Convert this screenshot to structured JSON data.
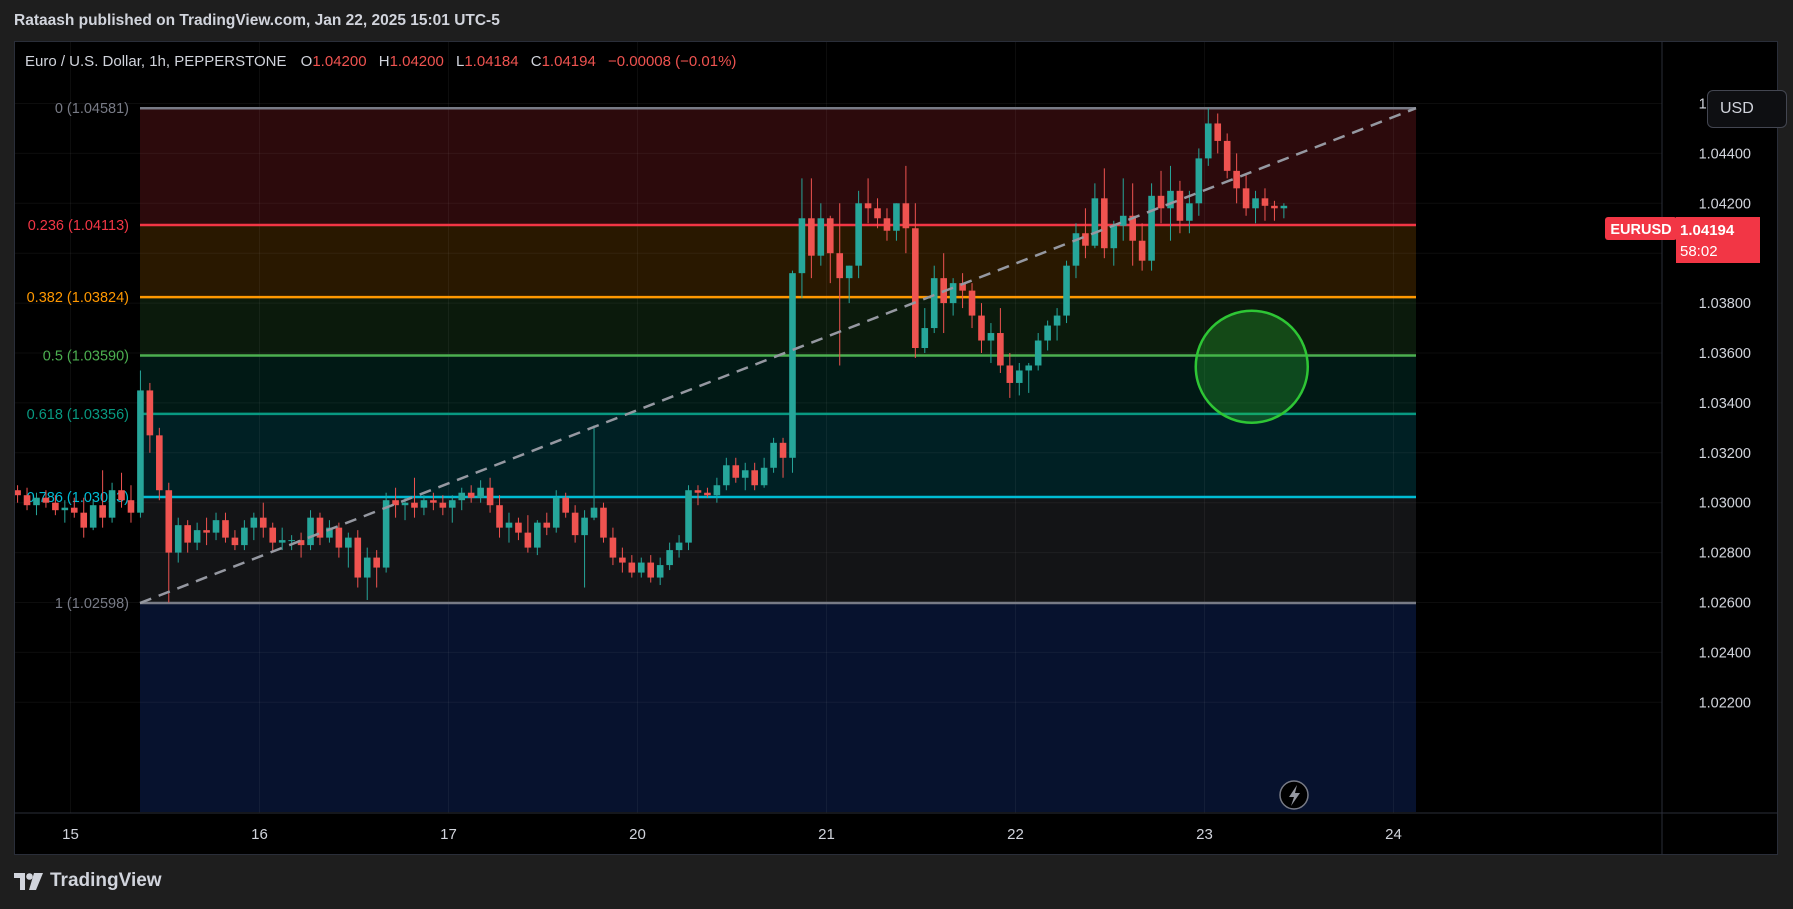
{
  "header": {
    "published_text": "Rataash published on TradingView.com, Jan 22, 2025 15:01 UTC-5"
  },
  "footer": {
    "brand": "TradingView"
  },
  "currency_button": "USD",
  "legend": {
    "symbol": "Euro / U.S. Dollar, 1h, PEPPERSTONE",
    "o_label": "O",
    "o": "1.04200",
    "h_label": "H",
    "h": "1.04200",
    "l_label": "L",
    "l": "1.04184",
    "c_label": "C",
    "c": "1.04194",
    "change": "−0.00008 (−0.01%)"
  },
  "price_tag": {
    "symbol": "EURUSD",
    "price": "1.04194",
    "countdown": "58:02"
  },
  "colors": {
    "up": "#26a69a",
    "down": "#ef5350",
    "background": "#000000",
    "fib_0": "#787b86",
    "fib_0236": "#f23645",
    "fib_0382": "#ff9800",
    "fib_05": "#4caf50",
    "fib_0618": "#089981",
    "fib_0786": "#00bcd4",
    "fib_1": "#787b86",
    "circle": "#2ec635"
  },
  "chart_data": {
    "type": "candlestick",
    "symbol": "EURUSD",
    "interval": "1h",
    "x_ticks": [
      "15",
      "16",
      "17",
      "20",
      "21",
      "22",
      "23",
      "24"
    ],
    "y_ticks": [
      "1.04600",
      "1.04400",
      "1.04200",
      "1.04000",
      "1.03800",
      "1.03600",
      "1.03400",
      "1.03200",
      "1.03000",
      "1.02800",
      "1.02600",
      "1.02400",
      "1.02200"
    ],
    "ylim": [
      1.0216,
      1.0474
    ],
    "fib_retracement": [
      {
        "ratio": "0",
        "price": 1.04581,
        "label": "0 (1.04581)"
      },
      {
        "ratio": "0.236",
        "price": 1.04113,
        "label": "0.236 (1.04113)"
      },
      {
        "ratio": "0.382",
        "price": 1.03824,
        "label": "0.382 (1.03824)"
      },
      {
        "ratio": "0.5",
        "price": 1.0359,
        "label": "0.5 (1.03590)"
      },
      {
        "ratio": "0.618",
        "price": 1.03356,
        "label": "0.618 (1.03356)"
      },
      {
        "ratio": "0.786",
        "price": 1.03023,
        "label": "0.786 (1.03023)"
      },
      {
        "ratio": "1",
        "price": 1.02598,
        "label": "1 (1.02598)"
      }
    ],
    "trend_line": {
      "start": [
        15.37,
        1.02598
      ],
      "end": [
        24.1,
        1.04581
      ]
    },
    "highlight_circle": {
      "x": 21.25,
      "y": 1.03545
    },
    "series": [
      {
        "candles": [
          [
            14.72,
            1.0305,
            1.0307,
            1.03,
            1.0303
          ],
          [
            14.77,
            1.0303,
            1.0306,
            1.0297,
            1.0299
          ],
          [
            14.82,
            1.0299,
            1.0304,
            1.0295,
            1.0302
          ],
          [
            14.87,
            1.0302,
            1.0305,
            1.0298,
            1.03
          ],
          [
            14.92,
            1.03,
            1.0303,
            1.0295,
            1.0297
          ],
          [
            14.97,
            1.0297,
            1.0301,
            1.0292,
            1.0298
          ],
          [
            15.02,
            1.0298,
            1.0302,
            1.0294,
            1.0296
          ],
          [
            15.07,
            1.0296,
            1.0302,
            1.0286,
            1.029
          ],
          [
            15.12,
            1.029,
            1.0301,
            1.0289,
            1.0299
          ],
          [
            15.17,
            1.0299,
            1.0313,
            1.029,
            1.0294
          ],
          [
            15.22,
            1.0294,
            1.0308,
            1.0292,
            1.0305
          ],
          [
            15.27,
            1.0305,
            1.0312,
            1.0298,
            1.0301
          ],
          [
            15.32,
            1.0301,
            1.0307,
            1.0292,
            1.0296
          ],
          [
            15.37,
            1.0296,
            1.0353,
            1.0294,
            1.0345
          ],
          [
            15.42,
            1.0345,
            1.0348,
            1.032,
            1.0327
          ],
          [
            15.47,
            1.0327,
            1.033,
            1.0301,
            1.0305
          ],
          [
            15.52,
            1.0305,
            1.0308,
            1.026,
            1.028
          ],
          [
            15.57,
            1.028,
            1.0294,
            1.0276,
            1.0291
          ],
          [
            15.62,
            1.0291,
            1.0293,
            1.028,
            1.0284
          ],
          [
            15.67,
            1.0284,
            1.0292,
            1.0281,
            1.0289
          ],
          [
            15.72,
            1.0289,
            1.0294,
            1.0283,
            1.0288
          ],
          [
            15.77,
            1.0288,
            1.0296,
            1.0285,
            1.0293
          ],
          [
            15.82,
            1.0293,
            1.0296,
            1.0284,
            1.0286
          ],
          [
            15.87,
            1.0286,
            1.0289,
            1.0281,
            1.0283
          ],
          [
            15.92,
            1.0283,
            1.0293,
            1.0281,
            1.029
          ],
          [
            15.97,
            1.029,
            1.0296,
            1.0285,
            1.0294
          ],
          [
            16.02,
            1.0294,
            1.03,
            1.0286,
            1.029
          ],
          [
            16.07,
            1.029,
            1.0292,
            1.028,
            1.0284
          ],
          [
            16.12,
            1.0284,
            1.029,
            1.0281,
            1.0285
          ],
          [
            16.17,
            1.0285,
            1.0287,
            1.0281,
            1.0285
          ],
          [
            16.22,
            1.0285,
            1.0288,
            1.0278,
            1.0283
          ],
          [
            16.27,
            1.0283,
            1.0297,
            1.0281,
            1.0294
          ],
          [
            16.32,
            1.0294,
            1.0296,
            1.0283,
            1.0286
          ],
          [
            16.37,
            1.0286,
            1.0293,
            1.0284,
            1.029
          ],
          [
            16.42,
            1.029,
            1.0292,
            1.0278,
            1.0282
          ],
          [
            16.47,
            1.0282,
            1.0288,
            1.0274,
            1.0286
          ],
          [
            16.52,
            1.0286,
            1.0289,
            1.0266,
            1.027
          ],
          [
            16.57,
            1.027,
            1.0282,
            1.0261,
            1.0278
          ],
          [
            16.62,
            1.0278,
            1.0281,
            1.0266,
            1.0274
          ],
          [
            16.67,
            1.0274,
            1.0304,
            1.0272,
            1.0301
          ],
          [
            16.72,
            1.0301,
            1.0306,
            1.0294,
            1.0299
          ],
          [
            16.77,
            1.0299,
            1.0302,
            1.0293,
            1.03
          ],
          [
            16.82,
            1.03,
            1.031,
            1.0294,
            1.0298
          ],
          [
            16.87,
            1.0298,
            1.0303,
            1.0295,
            1.0301
          ],
          [
            16.92,
            1.0301,
            1.0304,
            1.0297,
            1.03
          ],
          [
            16.97,
            1.03,
            1.0303,
            1.0295,
            1.0298
          ],
          [
            17.02,
            1.0298,
            1.0303,
            1.0292,
            1.0301
          ],
          [
            17.07,
            1.0301,
            1.0306,
            1.0297,
            1.0304
          ],
          [
            17.12,
            1.0304,
            1.0307,
            1.03,
            1.0302
          ],
          [
            17.17,
            1.0302,
            1.0309,
            1.03,
            1.0306
          ],
          [
            17.22,
            1.0306,
            1.031,
            1.0296,
            1.0299
          ],
          [
            17.27,
            1.0299,
            1.0303,
            1.0286,
            1.029
          ],
          [
            17.32,
            1.029,
            1.0296,
            1.0284,
            1.0292
          ],
          [
            17.37,
            1.0292,
            1.0294,
            1.0285,
            1.0288
          ],
          [
            17.42,
            1.0288,
            1.0295,
            1.028,
            1.0282
          ],
          [
            17.47,
            1.0282,
            1.0293,
            1.0279,
            1.0292
          ],
          [
            17.52,
            1.0292,
            1.0296,
            1.0287,
            1.029
          ],
          [
            17.57,
            1.029,
            1.0305,
            1.0288,
            1.0302
          ],
          [
            17.62,
            1.0302,
            1.0304,
            1.0294,
            1.0296
          ],
          [
            17.67,
            1.0296,
            1.0299,
            1.0284,
            1.0287
          ],
          [
            17.72,
            1.0287,
            1.0297,
            1.0266,
            1.0294
          ],
          [
            17.77,
            1.0294,
            1.0331,
            1.0293,
            1.0298
          ],
          [
            17.82,
            1.0298,
            1.03,
            1.0284,
            1.0286
          ],
          [
            17.87,
            1.0286,
            1.029,
            1.0275,
            1.0278
          ],
          [
            17.92,
            1.0278,
            1.0282,
            1.0272,
            1.0276
          ],
          [
            17.97,
            1.0276,
            1.0279,
            1.027,
            1.0272
          ],
          [
            18.02,
            1.0272,
            1.0278,
            1.027,
            1.0276
          ],
          [
            18.07,
            1.0276,
            1.0279,
            1.0268,
            1.027
          ],
          [
            18.12,
            1.027,
            1.0278,
            1.0267,
            1.0275
          ],
          [
            18.17,
            1.0275,
            1.0284,
            1.0273,
            1.0281
          ],
          [
            18.22,
            1.0281,
            1.0287,
            1.0278,
            1.0284
          ],
          [
            18.27,
            1.0284,
            1.0307,
            1.0281,
            1.0305
          ],
          [
            18.32,
            1.0305,
            1.0307,
            1.0299,
            1.0304
          ],
          [
            18.37,
            1.0304,
            1.0306,
            1.0302,
            1.0303
          ],
          [
            18.42,
            1.0303,
            1.031,
            1.03,
            1.0307
          ],
          [
            18.47,
            1.0307,
            1.0318,
            1.0305,
            1.0315
          ],
          [
            18.52,
            1.0315,
            1.0318,
            1.0308,
            1.031
          ],
          [
            18.57,
            1.031,
            1.0316,
            1.0305,
            1.0313
          ],
          [
            18.62,
            1.0313,
            1.0316,
            1.0305,
            1.0307
          ],
          [
            18.67,
            1.0307,
            1.0318,
            1.0306,
            1.0314
          ],
          [
            18.72,
            1.0314,
            1.0326,
            1.0312,
            1.0324
          ],
          [
            18.77,
            1.0324,
            1.0326,
            1.031,
            1.0318
          ],
          [
            18.82,
            1.0318,
            1.0393,
            1.0312,
            1.0392
          ],
          [
            18.87,
            1.0392,
            1.043,
            1.0382,
            1.0414
          ],
          [
            18.92,
            1.0414,
            1.043,
            1.039,
            1.0399
          ],
          [
            18.97,
            1.0399,
            1.042,
            1.0395,
            1.0414
          ],
          [
            19.02,
            1.0414,
            1.0415,
            1.0388,
            1.04
          ],
          [
            19.07,
            1.04,
            1.042,
            1.0355,
            1.039
          ],
          [
            19.12,
            1.039,
            1.0395,
            1.038,
            1.0395
          ],
          [
            19.17,
            1.0395,
            1.0425,
            1.039,
            1.042
          ],
          [
            19.22,
            1.042,
            1.043,
            1.0412,
            1.0418
          ],
          [
            19.27,
            1.0418,
            1.0422,
            1.041,
            1.0414
          ],
          [
            19.32,
            1.0414,
            1.0418,
            1.0405,
            1.0409
          ],
          [
            19.37,
            1.0409,
            1.042,
            1.0405,
            1.042
          ],
          [
            19.42,
            1.042,
            1.0435,
            1.04,
            1.041
          ],
          [
            19.47,
            1.041,
            1.042,
            1.0358,
            1.0362
          ],
          [
            19.52,
            1.0362,
            1.0378,
            1.036,
            1.037
          ],
          [
            19.57,
            1.037,
            1.0395,
            1.0368,
            1.039
          ],
          [
            19.62,
            1.039,
            1.04,
            1.0368,
            1.038
          ],
          [
            19.67,
            1.038,
            1.039,
            1.0375,
            1.0388
          ],
          [
            19.72,
            1.0388,
            1.0392,
            1.0378,
            1.0385
          ],
          [
            19.77,
            1.0385,
            1.0388,
            1.037,
            1.0375
          ],
          [
            19.82,
            1.0375,
            1.038,
            1.036,
            1.0365
          ],
          [
            19.87,
            1.0365,
            1.0372,
            1.0356,
            1.0368
          ],
          [
            19.92,
            1.0368,
            1.0378,
            1.0352,
            1.0355
          ],
          [
            19.97,
            1.0355,
            1.036,
            1.0342,
            1.0348
          ],
          [
            20.02,
            1.0348,
            1.0356,
            1.0343,
            1.0353
          ],
          [
            20.07,
            1.0353,
            1.0356,
            1.0344,
            1.0355
          ],
          [
            20.12,
            1.0355,
            1.0368,
            1.0353,
            1.0365
          ],
          [
            20.17,
            1.0365,
            1.0373,
            1.0361,
            1.0371
          ],
          [
            20.22,
            1.0371,
            1.0378,
            1.0365,
            1.0375
          ],
          [
            20.27,
            1.0375,
            1.0397,
            1.0372,
            1.0395
          ],
          [
            20.32,
            1.0395,
            1.0412,
            1.039,
            1.0408
          ],
          [
            20.37,
            1.0408,
            1.0418,
            1.0398,
            1.0403
          ],
          [
            20.42,
            1.0403,
            1.0428,
            1.0402,
            1.0422
          ],
          [
            20.47,
            1.0422,
            1.0434,
            1.0398,
            1.0402
          ],
          [
            20.52,
            1.0402,
            1.0413,
            1.0395,
            1.0411
          ],
          [
            20.57,
            1.0411,
            1.043,
            1.0405,
            1.0415
          ],
          [
            20.62,
            1.0415,
            1.0428,
            1.0395,
            1.0405
          ],
          [
            20.67,
            1.0405,
            1.0412,
            1.0393,
            1.0397
          ],
          [
            20.72,
            1.0397,
            1.0428,
            1.0393,
            1.0423
          ],
          [
            20.77,
            1.0423,
            1.0433,
            1.0412,
            1.0418
          ],
          [
            20.82,
            1.0418,
            1.0435,
            1.0405,
            1.0425
          ],
          [
            20.87,
            1.0425,
            1.0429,
            1.0408,
            1.0413
          ],
          [
            20.92,
            1.0413,
            1.0425,
            1.0408,
            1.042
          ],
          [
            20.97,
            1.042,
            1.0442,
            1.0415,
            1.0438
          ],
          [
            21.02,
            1.0438,
            1.0458,
            1.0435,
            1.0452
          ],
          [
            21.07,
            1.0452,
            1.0456,
            1.044,
            1.0445
          ],
          [
            21.12,
            1.0445,
            1.0448,
            1.043,
            1.0433
          ],
          [
            21.17,
            1.0433,
            1.044,
            1.042,
            1.0426
          ],
          [
            21.22,
            1.0426,
            1.0432,
            1.0415,
            1.0418
          ],
          [
            21.27,
            1.0418,
            1.0425,
            1.0412,
            1.0422
          ],
          [
            21.32,
            1.0422,
            1.0426,
            1.0413,
            1.0419
          ],
          [
            21.37,
            1.0419,
            1.0421,
            1.0413,
            1.0418
          ],
          [
            21.42,
            1.0418,
            1.042,
            1.0414,
            1.0419
          ]
        ]
      }
    ]
  }
}
